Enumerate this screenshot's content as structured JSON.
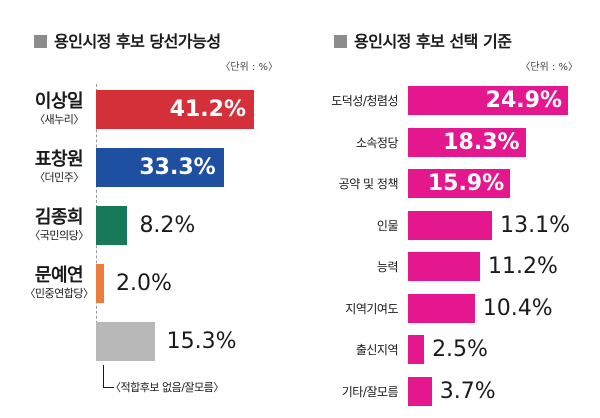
{
  "chart_data": [
    {
      "type": "bar",
      "orientation": "horizontal",
      "title": "용인시정 후보 당선가능성",
      "unit_label": "〈단위 : %〉",
      "categories": [
        {
          "name": "이상일",
          "party": "〈새누리〉",
          "value": 41.2,
          "value_label": "41.2%",
          "color": "#d3303a"
        },
        {
          "name": "표창원",
          "party": "〈더민주〉",
          "value": 33.3,
          "value_label": "33.3%",
          "color": "#1e4fa1"
        },
        {
          "name": "김종희",
          "party": "〈국민의당〉",
          "value": 8.2,
          "value_label": "8.2%",
          "color": "#17795a"
        },
        {
          "name": "문예연",
          "party": "〈민중연합당〉",
          "value": 2.0,
          "value_label": "2.0%",
          "color": "#ee7d3b"
        },
        {
          "name": "",
          "party": "",
          "value": 15.3,
          "value_label": "15.3%",
          "color": "#b8b8b8"
        }
      ],
      "note": "〈적합후보 없음/잘모름〉"
    },
    {
      "type": "bar",
      "orientation": "horizontal",
      "title": "용인시정 후보 선택 기준",
      "unit_label": "〈단위 : %〉",
      "color": "#e4178f",
      "categories": [
        {
          "label": "도덕성/청렴성",
          "value": 24.9,
          "value_label": "24.9%"
        },
        {
          "label": "소속정당",
          "value": 18.3,
          "value_label": "18.3%"
        },
        {
          "label": "공약 및 정책",
          "value": 15.9,
          "value_label": "15.9%"
        },
        {
          "label": "인물",
          "value": 13.1,
          "value_label": "13.1%"
        },
        {
          "label": "능력",
          "value": 11.2,
          "value_label": "11.2%"
        },
        {
          "label": "지역기여도",
          "value": 10.4,
          "value_label": "10.4%"
        },
        {
          "label": "출신지역",
          "value": 2.5,
          "value_label": "2.5%"
        },
        {
          "label": "기타/잘모름",
          "value": 3.7,
          "value_label": "3.7%"
        }
      ]
    }
  ]
}
